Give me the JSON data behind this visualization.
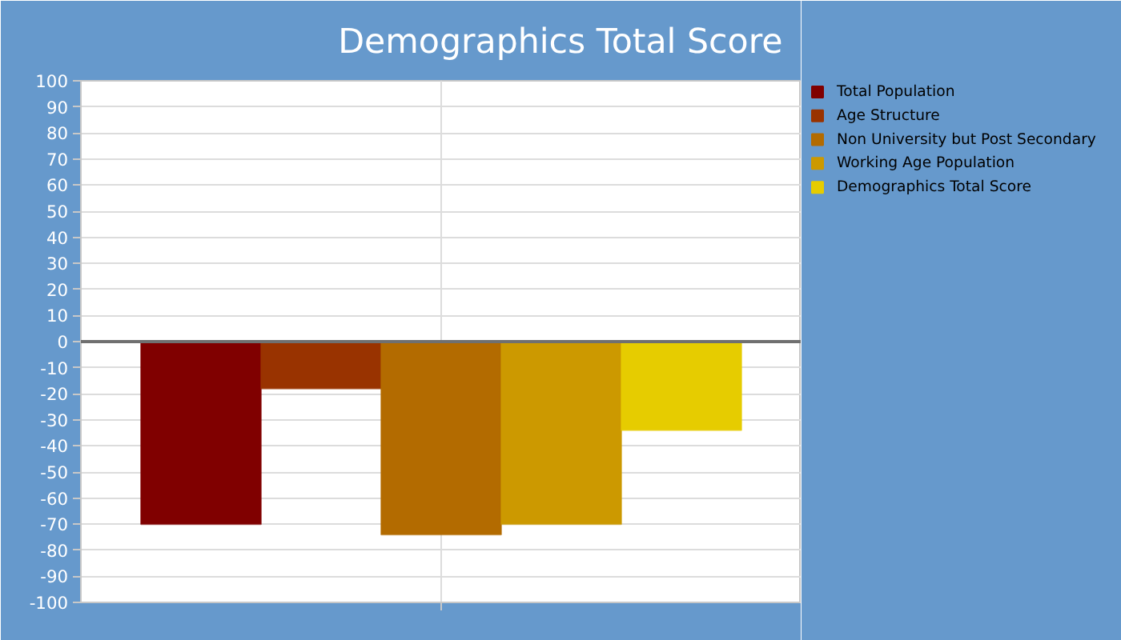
{
  "chart_data": {
    "type": "bar",
    "title": "Demographics Total Score",
    "categories": [
      null
    ],
    "series": [
      {
        "name": "Total Population",
        "color": "#800000",
        "values": [
          -70
        ]
      },
      {
        "name": "Age Structure",
        "color": "#993300",
        "values": [
          -18
        ]
      },
      {
        "name": "Non University but Post Secondary",
        "color": "#b36b00",
        "values": [
          -74
        ]
      },
      {
        "name": "Working Age Population",
        "color": "#cc9900",
        "values": [
          -70
        ]
      },
      {
        "name": "Demographics Total Score",
        "color": "#e6cc00",
        "values": [
          -34
        ]
      }
    ],
    "ylim": [
      -100,
      100
    ],
    "yticks": [
      -100,
      -90,
      -80,
      -70,
      -60,
      -50,
      -40,
      -30,
      -20,
      -10,
      0,
      10,
      20,
      30,
      40,
      50,
      60,
      70,
      80,
      90,
      100
    ],
    "grid": true,
    "legend": "top right"
  }
}
